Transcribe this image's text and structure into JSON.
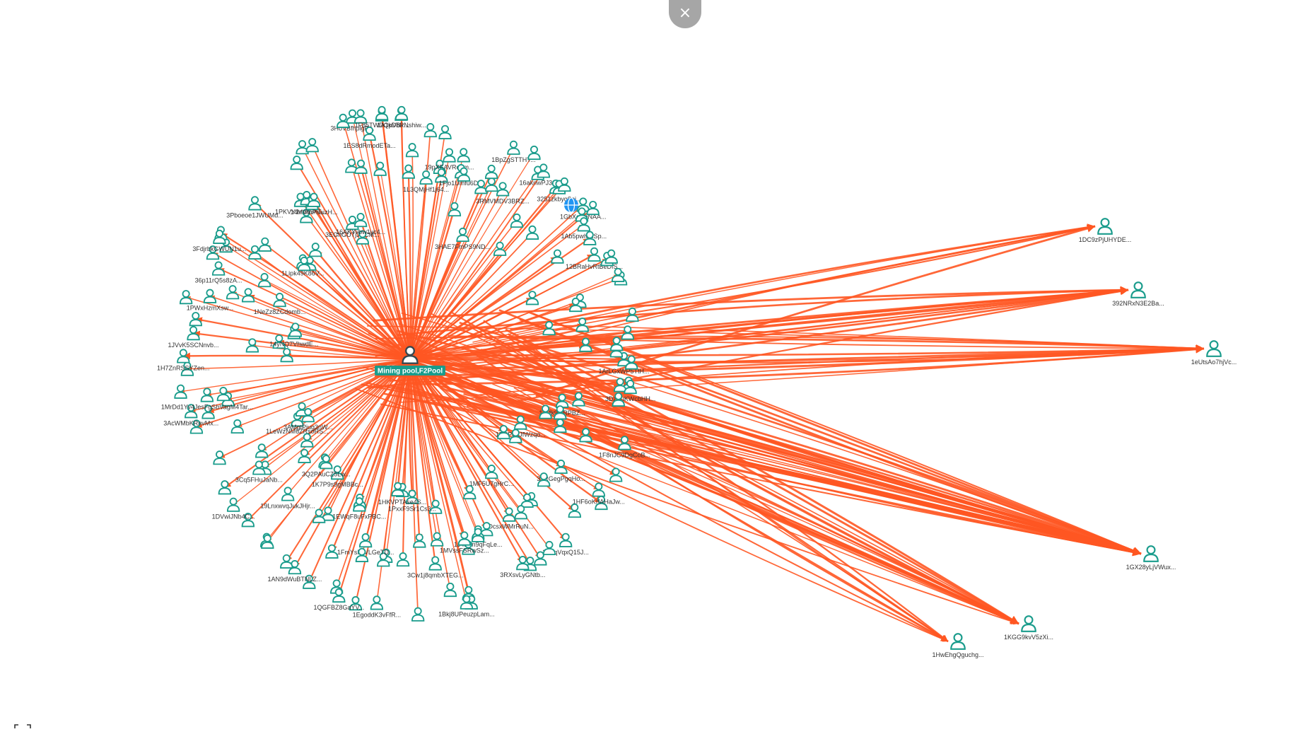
{
  "toolbar": {
    "close_icon": "close-icon",
    "close_symbol": "×",
    "fullscreen_icon": "fullscreen-icon"
  },
  "colors": {
    "edge": "#ff5722",
    "node": "#1a9c8c",
    "center_node": "#37474f",
    "center_label_bg": "#1a9c8c",
    "special_node": "#2196f3"
  },
  "graph": {
    "center": {
      "label": "Mining pool,F2Pool",
      "icon": "user-icon"
    },
    "special_node": {
      "icon": "globe-icon"
    },
    "right_nodes": [
      {
        "label": "1DC9zPjUHYDE..."
      },
      {
        "label": "392NRxN3E2Ba..."
      },
      {
        "label": "1eUtsAo7hjVc..."
      },
      {
        "label": "1GX28yLjVWux..."
      },
      {
        "label": "1KGG9kvV5zXi..."
      },
      {
        "label": "1HwEhgQguchg..."
      }
    ],
    "cluster_labels": [
      "1ArLGxWP5TtH...",
      "3DzBuKWcbHH...",
      "1JMk9tuRPBZ...",
      "1F8nJC9DgCoB...",
      "1EHPbnJfWzqo...",
      "33RGegPgqHo...",
      "1HF6oKrfAHaJw...",
      "1MF5U7gHrC...",
      "38XqVqxQ15J...",
      "1DcsxWMrRuN...",
      "3RXsvLyGNtb...",
      "1J4rTm9qFqLe...",
      "1MVssFSRwSz...",
      "1Bkj8UPeuzpLam...",
      "3Cw1j8qmbXTEG...",
      "1PxxF9Sr1Cs3...",
      "1HKVPTAse4S...",
      "1EgoddK3vFfR...",
      "1FmYsMjVLGeTD...",
      "1QGFBZ8GaYV...",
      "1EWqF8uFxPBC...",
      "1AN9dWuBTNLZ...",
      "1K7P9s9gMBBc...",
      "19LnxwvqJukJHjr...",
      "3Q2PAuCZ5Lw...",
      "1DVwiJNb4C...",
      "3Cq5FHuJaNb...",
      "1LeWzNM6ZRsoRS...",
      "3AMgtPjug3nW...",
      "3AcWMbKRnvMx...",
      "1MrDd1Yv4JesFgSbVagM4Tar...",
      "1H7ZnRSSYZen...",
      "1JVvK5SCNnvb...",
      "14yNQ7VhwdE...",
      "1PWxHzmXsw...",
      "36p11rQ5s8zA...",
      "1NeZz8ZCdomb...",
      "3FdjrbkGWUN1u...",
      "1Lipk49K86V...",
      "3Pboeoe1JWUMd...",
      "1PKVY1mW9nT...",
      "14MVmPsaizH...",
      "3EGhGUTjJDCM...",
      "16AKYvbw1yc4...",
      "3HoVBfhplgR...",
      "1ES8dRmodETa...",
      "1F85TWDQpVBx...",
      "1A1kDbPNshiw...",
      "1L3QMjHf1j64...",
      "19pXEAVRebm...",
      "1Fjo1Umfu6D...",
      "3HAE7FmPS9ND...",
      "1BpZgSTTHY...",
      "3RMVMDV3BRZ...",
      "16aknwPJ38J3...",
      "3251zkbyq8pj...",
      "1GbXoRbNAA...",
      "1Ab5pwlvlhSp...",
      "12BRaHvRtBeDfS..."
    ]
  }
}
